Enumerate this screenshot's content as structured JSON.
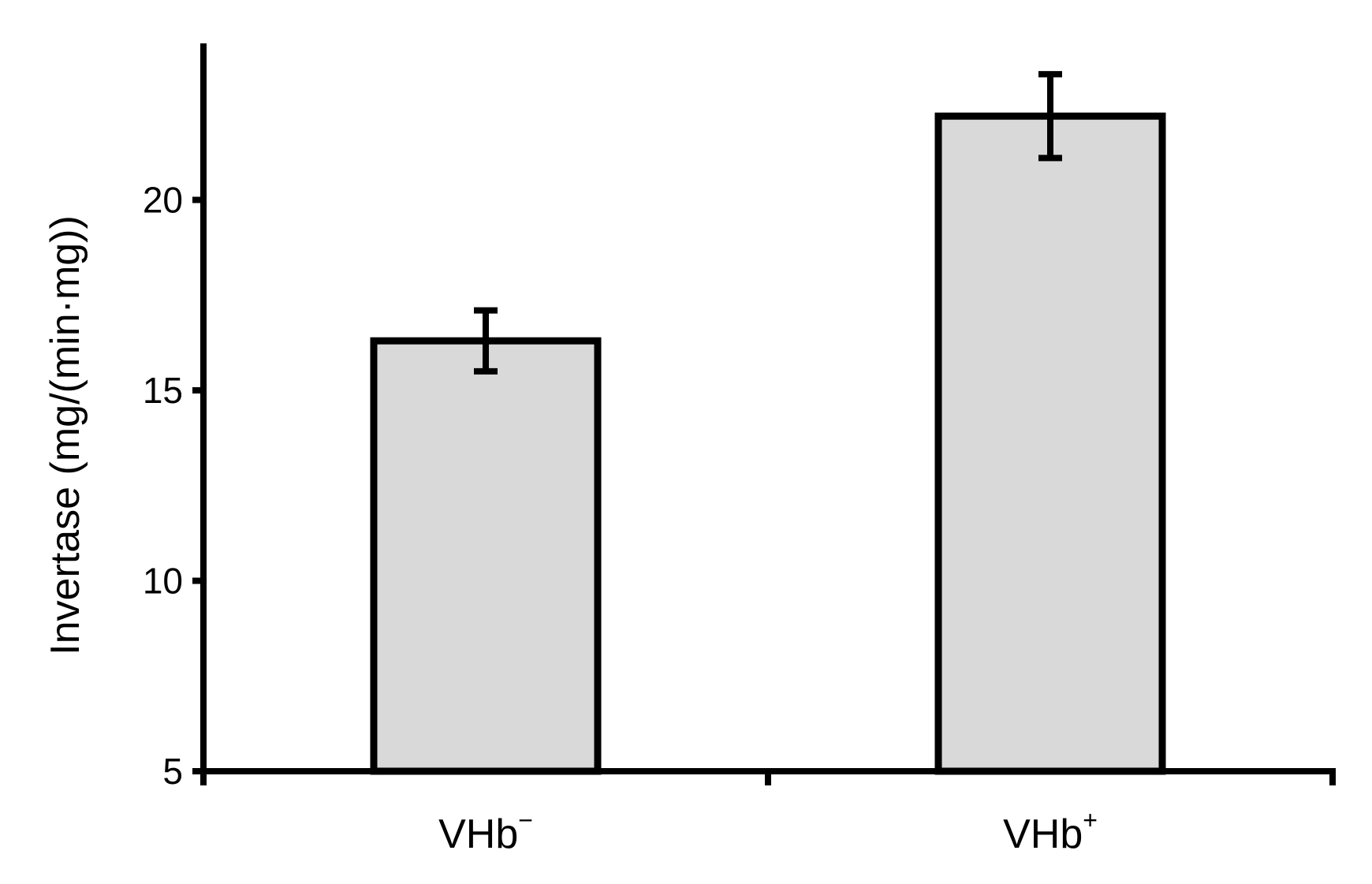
{
  "chart_data": {
    "type": "bar",
    "categories": [
      {
        "base": "VHb",
        "sup": "−"
      },
      {
        "base": "VHb",
        "sup": "+"
      }
    ],
    "values": [
      16.3,
      22.2
    ],
    "errors": [
      0.8,
      1.1
    ],
    "ylabel": "Invertase (mg/(min·mg))",
    "ylim": [
      5,
      24
    ],
    "yticks": [
      5,
      10,
      15,
      20
    ],
    "bar_color": "#d9d9d9",
    "edge_color": "#000000"
  }
}
